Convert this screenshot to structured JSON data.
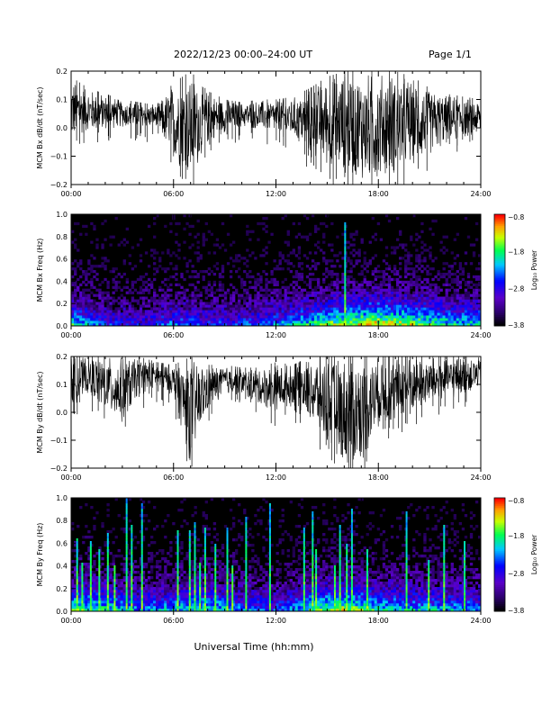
{
  "header": {
    "title": "2022/12/23  00:00–24:00 UT",
    "page": "Page 1/1"
  },
  "chart_data": [
    {
      "type": "line",
      "ylabel": "MCM Bx dB/dt (nT/sec)",
      "xlim": [
        0,
        24
      ],
      "ylim": [
        -0.2,
        0.2
      ],
      "yticks": [
        "−0.2",
        "−0.1",
        "0.0",
        "0.1",
        "0.2"
      ],
      "xticks": [
        "00:00",
        "06:00",
        "12:00",
        "18:00",
        "24:00"
      ],
      "x_hours": [
        0,
        1,
        2,
        3,
        4,
        5,
        6,
        7,
        8,
        9,
        10,
        11,
        12,
        13,
        14,
        15,
        16,
        17,
        18,
        19,
        20,
        21,
        22,
        23,
        24
      ],
      "envelope_upper": [
        0.18,
        0.14,
        0.12,
        0.1,
        0.09,
        0.08,
        0.16,
        0.2,
        0.13,
        0.1,
        0.09,
        0.1,
        0.1,
        0.11,
        0.14,
        0.18,
        0.2,
        0.2,
        0.2,
        0.2,
        0.18,
        0.14,
        0.12,
        0.11,
        0.1
      ],
      "envelope_lower": [
        -0.05,
        -0.02,
        -0.01,
        0.0,
        0.0,
        0.0,
        -0.12,
        -0.2,
        -0.06,
        -0.02,
        0.0,
        -0.01,
        -0.02,
        -0.04,
        -0.1,
        -0.14,
        -0.17,
        -0.2,
        -0.2,
        -0.17,
        -0.14,
        -0.1,
        -0.06,
        -0.04,
        -0.03
      ]
    },
    {
      "type": "heatmap",
      "ylabel": "MCM Bx Freq (Hz)",
      "xlim": [
        0,
        24
      ],
      "ylim": [
        0,
        1.0
      ],
      "yticks": [
        "0.0",
        "0.2",
        "0.4",
        "0.6",
        "0.8",
        "1.0"
      ],
      "xticks": [
        "00:00",
        "06:00",
        "12:00",
        "18:00",
        "24:00"
      ],
      "colorbar": {
        "label": "Log₁₀ Power",
        "ticks": [
          "−0.8",
          "−1.8",
          "−2.8",
          "−3.8"
        ],
        "range": [
          -3.8,
          -0.8
        ]
      },
      "activity_hours": [
        0,
        2,
        4,
        6,
        8,
        10,
        12,
        14,
        16,
        18,
        20,
        22,
        24
      ],
      "activity_level": [
        0.45,
        0.3,
        0.25,
        0.35,
        0.3,
        0.3,
        0.35,
        0.45,
        0.55,
        0.6,
        0.55,
        0.45,
        0.4
      ],
      "bright_lines_hours": [
        16.0
      ]
    },
    {
      "type": "line",
      "ylabel": "MCM By dB/dt (nT/sec)",
      "xlim": [
        0,
        24
      ],
      "ylim": [
        -0.2,
        0.2
      ],
      "yticks": [
        "−0.2",
        "−0.1",
        "0.0",
        "0.1",
        "0.2"
      ],
      "xticks": [
        "00:00",
        "06:00",
        "12:00",
        "18:00",
        "24:00"
      ],
      "x_hours": [
        0,
        1,
        2,
        3,
        4,
        5,
        6,
        7,
        8,
        9,
        10,
        11,
        12,
        13,
        14,
        15,
        16,
        17,
        18,
        19,
        20,
        21,
        22,
        23,
        24
      ],
      "envelope_upper": [
        0.2,
        0.2,
        0.2,
        0.2,
        0.2,
        0.18,
        0.17,
        0.2,
        0.17,
        0.17,
        0.16,
        0.16,
        0.18,
        0.17,
        0.2,
        0.2,
        0.2,
        0.2,
        0.2,
        0.2,
        0.2,
        0.2,
        0.2,
        0.2,
        0.2
      ],
      "envelope_lower": [
        0.02,
        0.06,
        0.0,
        -0.05,
        0.06,
        0.08,
        0.06,
        -0.2,
        0.0,
        0.06,
        0.06,
        0.02,
        0.0,
        0.02,
        -0.04,
        -0.12,
        -0.2,
        -0.2,
        -0.06,
        -0.04,
        0.0,
        0.02,
        0.04,
        0.06,
        0.08
      ]
    },
    {
      "type": "heatmap",
      "ylabel": "MCM By Freq (Hz)",
      "xlabel": "Universal Time (hh:mm)",
      "xlim": [
        0,
        24
      ],
      "ylim": [
        0,
        1.0
      ],
      "yticks": [
        "0.0",
        "0.2",
        "0.4",
        "0.6",
        "0.8",
        "1.0"
      ],
      "xticks": [
        "00:00",
        "06:00",
        "12:00",
        "18:00",
        "24:00"
      ],
      "colorbar": {
        "label": "Log₁₀ Power",
        "ticks": [
          "−0.8",
          "−1.8",
          "−2.8",
          "−3.8"
        ],
        "range": [
          -3.8,
          -0.8
        ]
      },
      "activity_hours": [
        0,
        2,
        4,
        6,
        8,
        10,
        12,
        14,
        16,
        18,
        20,
        22,
        24
      ],
      "activity_level": [
        0.5,
        0.45,
        0.35,
        0.4,
        0.45,
        0.35,
        0.3,
        0.45,
        0.55,
        0.45,
        0.4,
        0.4,
        0.35
      ],
      "bright_lines_hours": [
        0.3,
        0.6,
        1.1,
        1.6,
        2.1,
        2.5,
        3.2,
        3.5,
        4.1,
        6.2,
        6.9,
        7.2,
        7.5,
        7.8,
        8.4,
        9.1,
        9.4,
        10.2,
        11.6,
        13.6,
        14.1,
        14.3,
        15.4,
        15.7,
        16.1,
        16.4,
        17.3,
        19.6,
        20.9,
        21.8,
        23.0
      ]
    }
  ],
  "colors": {
    "background": "#000000",
    "trace": "#000000",
    "axis": "#000000"
  }
}
